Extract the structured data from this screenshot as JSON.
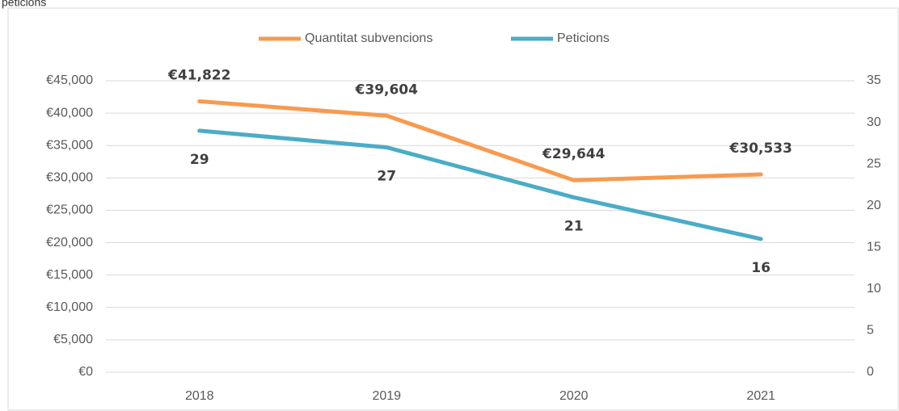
{
  "chart_data": {
    "type": "line",
    "title": "peticions",
    "categories": [
      "2018",
      "2019",
      "2020",
      "2021"
    ],
    "series": [
      {
        "name": "Quantitat subvencions",
        "color": "#f79a4f",
        "values": [
          41822,
          39604,
          29644,
          30533
        ],
        "value_labels": [
          "€41,822",
          "€39,604",
          "€29,644",
          "€30,533"
        ]
      },
      {
        "name": "Peticions",
        "color": "#4bacc6",
        "axis": "y2",
        "values": [
          29,
          27,
          21,
          16
        ]
      }
    ],
    "ylim": [
      0,
      45000
    ],
    "yticks": [
      {
        "value": 0,
        "label": "€0"
      },
      {
        "value": 5000,
        "label": "€5,000"
      },
      {
        "value": 10000,
        "label": "€10,000"
      },
      {
        "value": 15000,
        "label": "€15,000"
      },
      {
        "value": 20000,
        "label": "€20,000"
      },
      {
        "value": 25000,
        "label": "€25,000"
      },
      {
        "value": 30000,
        "label": "€30,000"
      },
      {
        "value": 35000,
        "label": "€35,000"
      },
      {
        "value": 40000,
        "label": "€40,000"
      },
      {
        "value": 45000,
        "label": "€45,000"
      }
    ],
    "y2lim": [
      0,
      35
    ],
    "y2ticks": [
      0,
      5,
      10,
      15,
      20,
      25,
      30,
      35
    ],
    "grid": true,
    "legend": "top"
  }
}
